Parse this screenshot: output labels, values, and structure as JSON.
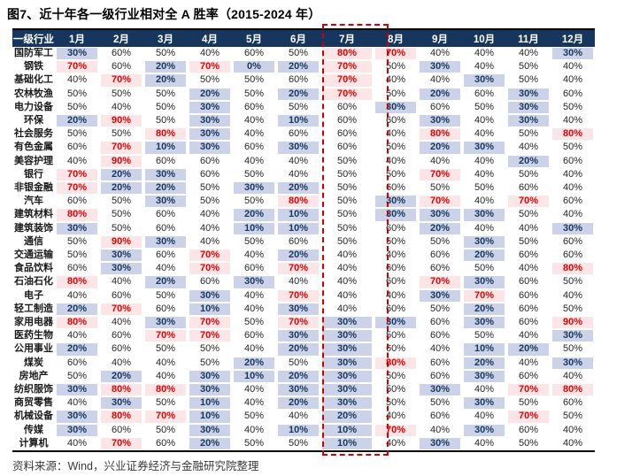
{
  "title": "图7、近十年各一级行业相对全 A 胜率（2015-2024 年）",
  "source_note": "资料来源：Wind，兴业证券经济与金融研究院整理",
  "chart_data": {
    "type": "table",
    "corner_label": "一级行业",
    "columns": [
      "1月",
      "2月",
      "3月",
      "4月",
      "5月",
      "6月",
      "7月",
      "8月",
      "9月",
      "10月",
      "11月",
      "12月"
    ],
    "highlighted_column": "7月",
    "unit": "%",
    "legend_rules": {
      "low_max": 30,
      "high_min": 70
    },
    "rows": [
      {
        "industry": "国防军工",
        "values": [
          30,
          60,
          50,
          40,
          60,
          50,
          80,
          70,
          40,
          40,
          40,
          30
        ]
      },
      {
        "industry": "钢铁",
        "values": [
          70,
          60,
          20,
          70,
          0,
          20,
          70,
          50,
          30,
          40,
          50,
          40
        ]
      },
      {
        "industry": "基础化工",
        "values": [
          40,
          70,
          20,
          50,
          50,
          60,
          70,
          40,
          40,
          30,
          50,
          40
        ]
      },
      {
        "industry": "农林牧渔",
        "values": [
          50,
          50,
          50,
          20,
          50,
          20,
          70,
          50,
          20,
          60,
          30,
          60
        ]
      },
      {
        "industry": "电力设备",
        "values": [
          50,
          40,
          50,
          30,
          60,
          50,
          60,
          30,
          60,
          50,
          30,
          50
        ]
      },
      {
        "industry": "环保",
        "values": [
          20,
          90,
          50,
          30,
          40,
          10,
          60,
          60,
          30,
          40,
          30,
          40
        ]
      },
      {
        "industry": "社会服务",
        "values": [
          50,
          50,
          80,
          30,
          40,
          60,
          60,
          40,
          80,
          40,
          50,
          80
        ]
      },
      {
        "industry": "有色金属",
        "values": [
          60,
          70,
          10,
          30,
          60,
          30,
          60,
          50,
          20,
          30,
          40,
          50
        ]
      },
      {
        "industry": "美容护理",
        "values": [
          40,
          90,
          60,
          60,
          40,
          40,
          50,
          40,
          40,
          40,
          20,
          60
        ]
      },
      {
        "industry": "银行",
        "values": [
          70,
          20,
          30,
          60,
          50,
          40,
          50,
          50,
          70,
          40,
          50,
          40
        ]
      },
      {
        "industry": "非银金融",
        "values": [
          70,
          20,
          20,
          50,
          30,
          20,
          50,
          60,
          50,
          50,
          60,
          40
        ]
      },
      {
        "industry": "汽车",
        "values": [
          60,
          50,
          30,
          50,
          50,
          80,
          50,
          30,
          70,
          40,
          70,
          60
        ]
      },
      {
        "industry": "建筑材料",
        "values": [
          80,
          50,
          60,
          40,
          20,
          10,
          50,
          30,
          30,
          30,
          50,
          40
        ]
      },
      {
        "industry": "建筑装饰",
        "values": [
          30,
          50,
          60,
          40,
          10,
          10,
          50,
          60,
          20,
          40,
          40,
          30
        ]
      },
      {
        "industry": "通信",
        "values": [
          50,
          90,
          30,
          40,
          50,
          60,
          50,
          50,
          50,
          30,
          50,
          60
        ]
      },
      {
        "industry": "交通运输",
        "values": [
          50,
          30,
          60,
          70,
          40,
          20,
          40,
          40,
          60,
          20,
          60,
          60
        ]
      },
      {
        "industry": "食品饮料",
        "values": [
          60,
          30,
          40,
          70,
          60,
          70,
          40,
          60,
          60,
          50,
          40,
          80
        ]
      },
      {
        "industry": "石油石化",
        "values": [
          80,
          40,
          20,
          60,
          30,
          40,
          40,
          60,
          70,
          30,
          60,
          50
        ]
      },
      {
        "industry": "电子",
        "values": [
          40,
          60,
          50,
          30,
          40,
          70,
          40,
          40,
          30,
          70,
          60,
          40
        ]
      },
      {
        "industry": "轻工制造",
        "values": [
          20,
          70,
          60,
          10,
          40,
          30,
          40,
          60,
          50,
          20,
          60,
          50
        ]
      },
      {
        "industry": "家用电器",
        "values": [
          80,
          40,
          30,
          70,
          50,
          70,
          30,
          30,
          60,
          30,
          60,
          90
        ]
      },
      {
        "industry": "医药生物",
        "values": [
          40,
          60,
          70,
          70,
          60,
          30,
          30,
          50,
          60,
          50,
          40,
          30
        ]
      },
      {
        "industry": "公用事业",
        "values": [
          20,
          60,
          50,
          50,
          40,
          20,
          30,
          60,
          40,
          10,
          20,
          50
        ]
      },
      {
        "industry": "煤炭",
        "values": [
          60,
          40,
          40,
          50,
          20,
          50,
          30,
          80,
          60,
          20,
          40,
          30
        ]
      },
      {
        "industry": "房地产",
        "values": [
          50,
          20,
          40,
          30,
          10,
          20,
          30,
          50,
          60,
          30,
          60,
          40
        ]
      },
      {
        "industry": "纺织服饰",
        "values": [
          30,
          80,
          80,
          30,
          40,
          30,
          30,
          50,
          30,
          40,
          70,
          80
        ]
      },
      {
        "industry": "商贸零售",
        "values": [
          40,
          30,
          50,
          10,
          40,
          20,
          30,
          50,
          50,
          30,
          50,
          60
        ]
      },
      {
        "industry": "机械设备",
        "values": [
          30,
          80,
          70,
          10,
          50,
          40,
          20,
          40,
          60,
          40,
          70,
          50
        ]
      },
      {
        "industry": "传媒",
        "values": [
          30,
          60,
          50,
          30,
          40,
          10,
          10,
          70,
          40,
          30,
          60,
          40
        ]
      },
      {
        "industry": "计算机",
        "values": [
          40,
          70,
          60,
          20,
          50,
          50,
          10,
          40,
          30,
          40,
          50,
          40
        ]
      }
    ]
  },
  "colors": {
    "header_bg": "#17365d",
    "low_bg": "#ccd3e8",
    "low_text": "#17365d",
    "high_bg": "#fbe5e6",
    "high_text": "#e00000",
    "highlight_border": "#cc0000",
    "rule_line": "#000000"
  }
}
